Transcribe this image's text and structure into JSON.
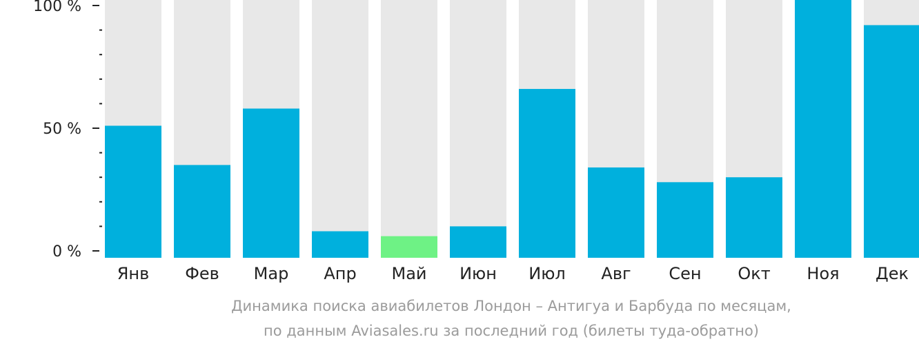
{
  "chart_data": {
    "type": "bar",
    "categories": [
      "Янв",
      "Фев",
      "Мар",
      "Апр",
      "Май",
      "Июн",
      "Июл",
      "Авг",
      "Сен",
      "Окт",
      "Ноя",
      "Дек"
    ],
    "values": [
      51,
      35,
      58,
      8,
      6,
      10,
      66,
      34,
      28,
      30,
      100,
      92
    ],
    "highlight_index": 4,
    "ylim": [
      0,
      100
    ],
    "y_major_ticks": [
      {
        "value": 0,
        "label": "0 %"
      },
      {
        "value": 50,
        "label": "50 %"
      },
      {
        "value": 100,
        "label": "100 %"
      }
    ],
    "y_minor_step": 10,
    "grid": false,
    "legend": "none",
    "colors": {
      "bar": "#00b0dd",
      "highlight": "#6ef285",
      "background_bar": "#e8e8e8",
      "axis": "#222222",
      "caption": "#9b9b9b"
    }
  },
  "caption": {
    "line1": "Динамика поиска авиабилетов Лондон – Антигуа и Барбуда по месяцам,",
    "line2": "по данным Aviasales.ru за последний год (билеты туда-обратно)"
  }
}
